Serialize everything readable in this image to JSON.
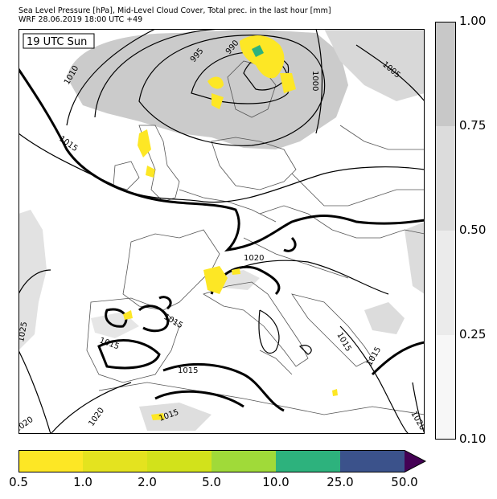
{
  "header": {
    "line1": "Sea Level Pressure [hPa], Mid-Level Cloud Cover, Total prec. in the last hour [mm]",
    "line2": "WRF 28.06.2019 18:00 UTC +49"
  },
  "map": {
    "time_label": "19 UTC Sun",
    "isobar_labels": [
      "995",
      "990",
      "1000",
      "1005",
      "1010",
      "1015",
      "1015",
      "1020",
      "1015",
      "1015",
      "1015",
      "1015",
      "1015",
      "1025",
      "1020",
      "1020",
      "1020",
      "1015"
    ],
    "colors": {
      "cloud": "#c8c8c8",
      "cloud_light": "#dedede",
      "coast": "#555555",
      "isobar": "#000000"
    }
  },
  "cloud_legend": {
    "ticks": [
      "1.00",
      "0.75",
      "0.50",
      "0.25",
      "0.10"
    ],
    "colors": [
      "#c8c8c8",
      "#dcdcdc",
      "#ebebeb",
      "#f7f7f7"
    ]
  },
  "precip_legend": {
    "ticks": [
      "0.5",
      "1.0",
      "2.0",
      "5.0",
      "10.0",
      "25.0",
      "50.0"
    ],
    "colors": [
      "#fde725",
      "#e4e31f",
      "#d2e21b",
      "#a0da39",
      "#2db27d",
      "#3b528b",
      "#440154"
    ]
  }
}
